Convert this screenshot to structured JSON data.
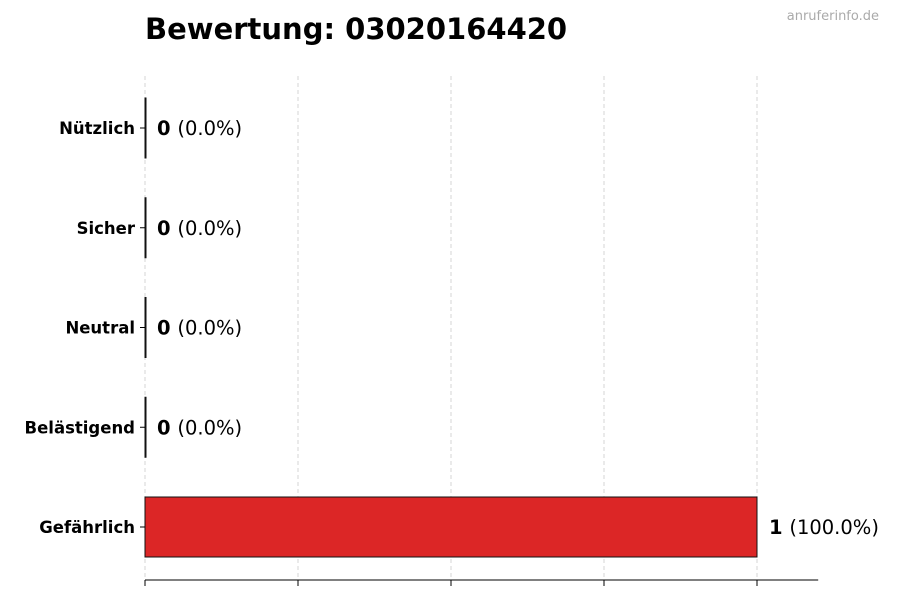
{
  "title": "Bewertung: 03020164420",
  "watermark": "anruferinfo.de",
  "chart_data": {
    "type": "bar",
    "orientation": "horizontal",
    "categories": [
      "Nützlich",
      "Sicher",
      "Neutral",
      "Belästigend",
      "Gefährlich"
    ],
    "values": [
      0,
      0,
      0,
      0,
      1
    ],
    "labels": [
      "(0.0%)",
      "(0.0%)",
      "(0.0%)",
      "(0.0%)",
      "(100.0%)"
    ],
    "colors": [
      "#333333",
      "#333333",
      "#333333",
      "#333333",
      "#dc2626"
    ],
    "xlim": [
      0,
      1.1
    ],
    "xticks": [
      0,
      0.25,
      0.5,
      0.75,
      1
    ],
    "grid": true,
    "title": "Bewertung: 03020164420",
    "xlabel": "",
    "ylabel": ""
  }
}
